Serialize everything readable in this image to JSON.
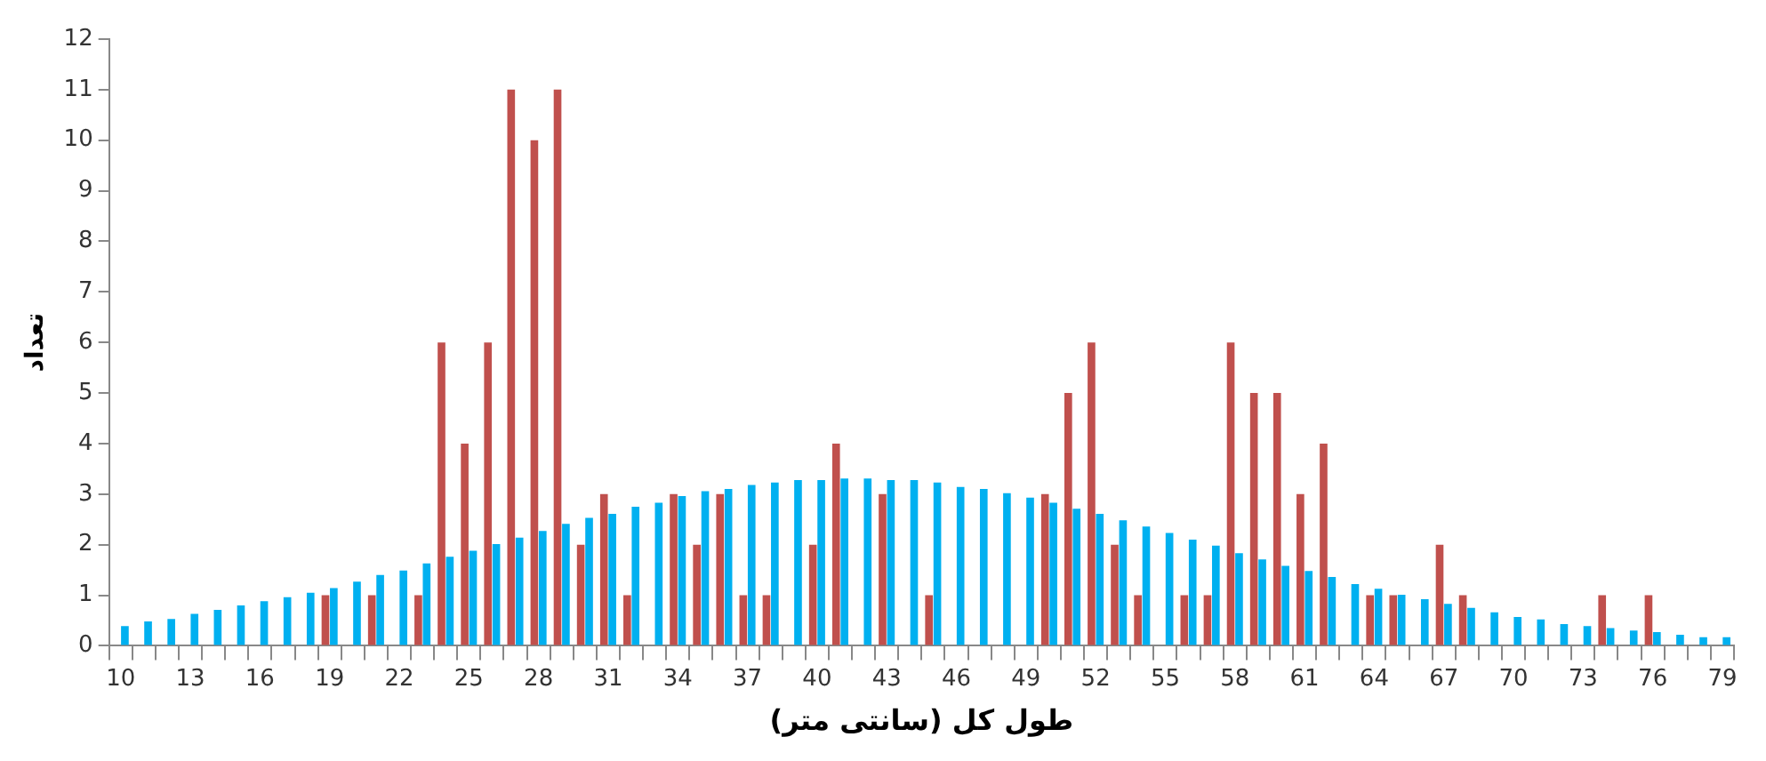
{
  "chart_data": {
    "type": "bar",
    "xlabel": "طول کل (سانتی متر)",
    "ylabel": "تعداد",
    "categories": [
      "10",
      null,
      null,
      "13",
      null,
      null,
      "16",
      null,
      null,
      "19",
      null,
      null,
      "22",
      null,
      null,
      "25",
      null,
      null,
      "28",
      null,
      null,
      "31",
      null,
      null,
      "34",
      null,
      null,
      "37",
      null,
      null,
      "40",
      null,
      null,
      "43",
      null,
      null,
      "46",
      null,
      null,
      "49",
      null,
      null,
      "52",
      null,
      null,
      "55",
      null,
      null,
      "58",
      null,
      null,
      "61",
      null,
      null,
      "64",
      null,
      null,
      "67",
      null,
      null,
      "70",
      null,
      null,
      "73",
      null,
      null,
      "76",
      null,
      null,
      "79"
    ],
    "series": [
      {
        "color": "#c0504d",
        "values": [
          null,
          null,
          null,
          null,
          null,
          null,
          null,
          null,
          null,
          1,
          null,
          1,
          null,
          1,
          6,
          4,
          6,
          11,
          10,
          11,
          2,
          3,
          1,
          null,
          3,
          2,
          3,
          1,
          1,
          null,
          2,
          4,
          null,
          3,
          null,
          1,
          null,
          null,
          null,
          null,
          3,
          5,
          6,
          2,
          1,
          null,
          1,
          1,
          6,
          5,
          5,
          3,
          4,
          null,
          1,
          1,
          null,
          2,
          1,
          null,
          null,
          null,
          null,
          null,
          1,
          null,
          1,
          null,
          null,
          null
        ]
      },
      {
        "color": "#00b0f0",
        "values": [
          0.39,
          0.48,
          0.53,
          0.63,
          0.71,
          0.8,
          0.88,
          0.96,
          1.05,
          1.14,
          1.27,
          1.4,
          1.49,
          1.63,
          1.76,
          1.88,
          2.01,
          2.14,
          2.27,
          2.41,
          2.53,
          2.61,
          2.75,
          2.83,
          2.96,
          3.06,
          3.1,
          3.18,
          3.23,
          3.28,
          3.28,
          3.31,
          3.31,
          3.28,
          3.28,
          3.23,
          3.14,
          3.1,
          3.02,
          2.93,
          2.83,
          2.71,
          2.61,
          2.48,
          2.36,
          2.23,
          2.1,
          1.98,
          1.83,
          1.71,
          1.58,
          1.48,
          1.36,
          1.22,
          1.13,
          1.01,
          0.92,
          0.83,
          0.75,
          0.66,
          0.57,
          0.52,
          0.43,
          0.39,
          0.35,
          0.3,
          0.27,
          0.22,
          0.17,
          0.17
        ]
      }
    ],
    "ylim": [
      0,
      12
    ],
    "yticks": [
      0,
      1,
      2,
      3,
      4,
      5,
      6,
      7,
      8,
      9,
      10,
      11,
      12
    ],
    "grid": false,
    "legend": false
  }
}
